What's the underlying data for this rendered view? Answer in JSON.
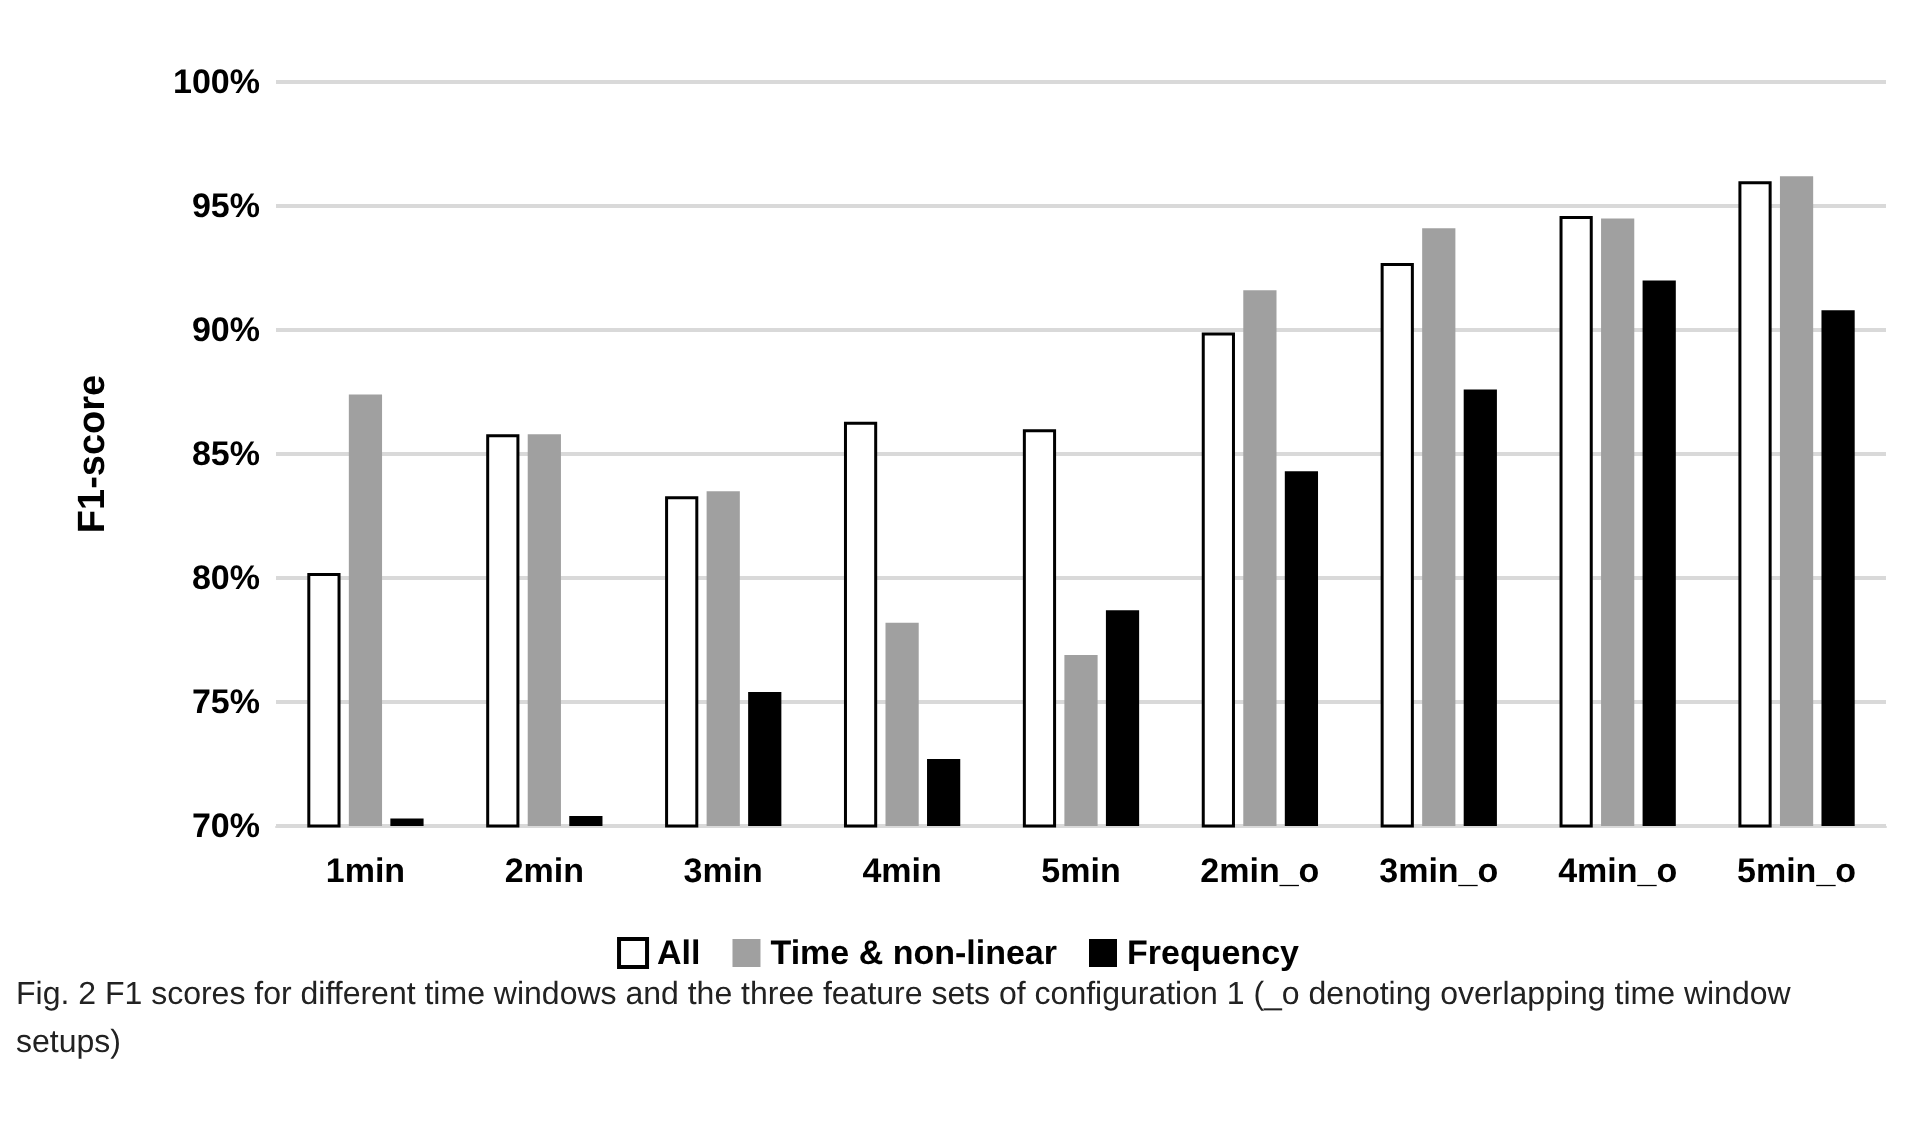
{
  "chart_data": {
    "type": "bar",
    "ylabel": "F1-score",
    "categories": [
      "1min",
      "2min",
      "3min",
      "4min",
      "5min",
      "2min_o",
      "3min_o",
      "4min_o",
      "5min_o"
    ],
    "series": [
      {
        "name": "All",
        "color": "#ffffff",
        "values": [
          80.2,
          85.8,
          83.3,
          86.3,
          86.0,
          89.9,
          92.7,
          94.6,
          96.0
        ]
      },
      {
        "name": "Time & non-linear",
        "color": "#a0a0a0",
        "values": [
          87.4,
          85.8,
          83.5,
          78.2,
          76.9,
          91.6,
          94.1,
          94.5,
          96.2
        ]
      },
      {
        "name": "Frequency",
        "color": "#000000",
        "values": [
          70.3,
          70.4,
          75.4,
          72.7,
          78.7,
          84.3,
          87.6,
          92.0,
          90.8
        ]
      }
    ],
    "ylim": [
      70,
      100
    ],
    "yticks": [
      {
        "value": 70,
        "label": "70%"
      },
      {
        "value": 75,
        "label": "75%"
      },
      {
        "value": 80,
        "label": "80%"
      },
      {
        "value": 85,
        "label": "85%"
      },
      {
        "value": 90,
        "label": "90%"
      },
      {
        "value": 95,
        "label": "95%"
      },
      {
        "value": 100,
        "label": "100%"
      }
    ],
    "grid": "y",
    "legend": "bottom",
    "annotations": [
      "Fig. 2  F1 scores for different time windows and the three feature sets of configuration 1 (_o denoting overlapping time window setups)"
    ]
  }
}
